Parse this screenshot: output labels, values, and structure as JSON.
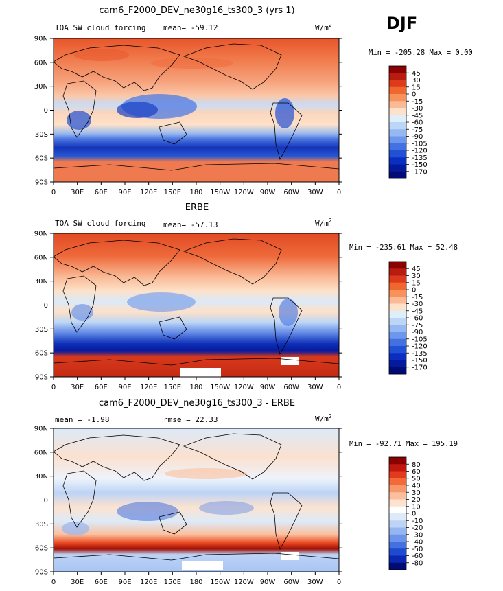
{
  "figure": {
    "season": "DJF"
  },
  "chart_data": [
    {
      "type": "heatmap",
      "title": "cam6_F2000_DEV_ne30g16_ts300_3 (yrs 1)",
      "left_label": "TOA SW cloud forcing",
      "center_label": "mean=  -59.12",
      "units": "W/m",
      "units_sup": "2",
      "minmax": "Min = -205.28  Max =   0.00",
      "colorbar": {
        "colors": [
          "#8b0000",
          "#b81b10",
          "#dd3a1c",
          "#f0662f",
          "#f7925a",
          "#fbb995",
          "#fde1c8",
          "#dfeefb",
          "#bcd6f7",
          "#95b8f2",
          "#6d97ec",
          "#4471e2",
          "#2250d4",
          "#0a2fc0",
          "#041a9c",
          "#020a76"
        ],
        "labels": [
          "45",
          "30",
          "15",
          "0",
          "-15",
          "-30",
          "-45",
          "-60",
          "-75",
          "-90",
          "-105",
          "-120",
          "-135",
          "-150",
          "-170"
        ]
      },
      "lat_ticks": [
        "90N",
        "60N",
        "30N",
        "0",
        "30S",
        "60S",
        "90S"
      ],
      "lon_ticks": [
        "0",
        "30E",
        "60E",
        "90E",
        "120E",
        "150E",
        "180",
        "150W",
        "120W",
        "90W",
        "60W",
        "30W",
        "0"
      ]
    },
    {
      "type": "heatmap",
      "title": "ERBE",
      "left_label": "TOA SW cloud forcing",
      "center_label": "mean=  -57.13",
      "units": "W/m",
      "units_sup": "2",
      "minmax": "Min = -235.61  Max =  52.48",
      "colorbar": {
        "colors": [
          "#8b0000",
          "#b81b10",
          "#dd3a1c",
          "#f0662f",
          "#f7925a",
          "#fbb995",
          "#fde1c8",
          "#dfeefb",
          "#bcd6f7",
          "#95b8f2",
          "#6d97ec",
          "#4471e2",
          "#2250d4",
          "#0a2fc0",
          "#041a9c",
          "#020a76"
        ],
        "labels": [
          "45",
          "30",
          "15",
          "0",
          "-15",
          "-30",
          "-45",
          "-60",
          "-75",
          "-90",
          "-105",
          "-120",
          "-135",
          "-150",
          "-170"
        ]
      },
      "lat_ticks": [
        "90N",
        "60N",
        "30N",
        "0",
        "30S",
        "60S",
        "90S"
      ],
      "lon_ticks": [
        "0",
        "30E",
        "60E",
        "90E",
        "120E",
        "150E",
        "180",
        "150W",
        "120W",
        "90W",
        "60W",
        "30W",
        "0"
      ]
    },
    {
      "type": "heatmap",
      "title": "cam6_F2000_DEV_ne30g16_ts300_3 - ERBE",
      "left_label": "mean =  -1.98",
      "center_label": "rmse =  22.33",
      "units": "W/m",
      "units_sup": "2",
      "minmax": "Min = -92.71  Max = 195.19",
      "colorbar": {
        "colors": [
          "#8b0000",
          "#c0180f",
          "#e23a1c",
          "#f26a3a",
          "#f8976a",
          "#fbbf9d",
          "#fde3cf",
          "#ffffff",
          "#dceaf9",
          "#bdd4f6",
          "#96b6f1",
          "#6d94ea",
          "#4470e0",
          "#1f49cf",
          "#0a27b0",
          "#020a76"
        ],
        "labels": [
          "80",
          "60",
          "50",
          "40",
          "30",
          "20",
          "10",
          "0",
          "-10",
          "-20",
          "-30",
          "-40",
          "-50",
          "-60",
          "-80"
        ]
      },
      "lat_ticks": [
        "90N",
        "60N",
        "30N",
        "0",
        "30S",
        "60S",
        "90S"
      ],
      "lon_ticks": [
        "0",
        "30E",
        "60E",
        "90E",
        "120E",
        "150E",
        "180",
        "150W",
        "120W",
        "90W",
        "60W",
        "30W",
        "0"
      ]
    }
  ]
}
